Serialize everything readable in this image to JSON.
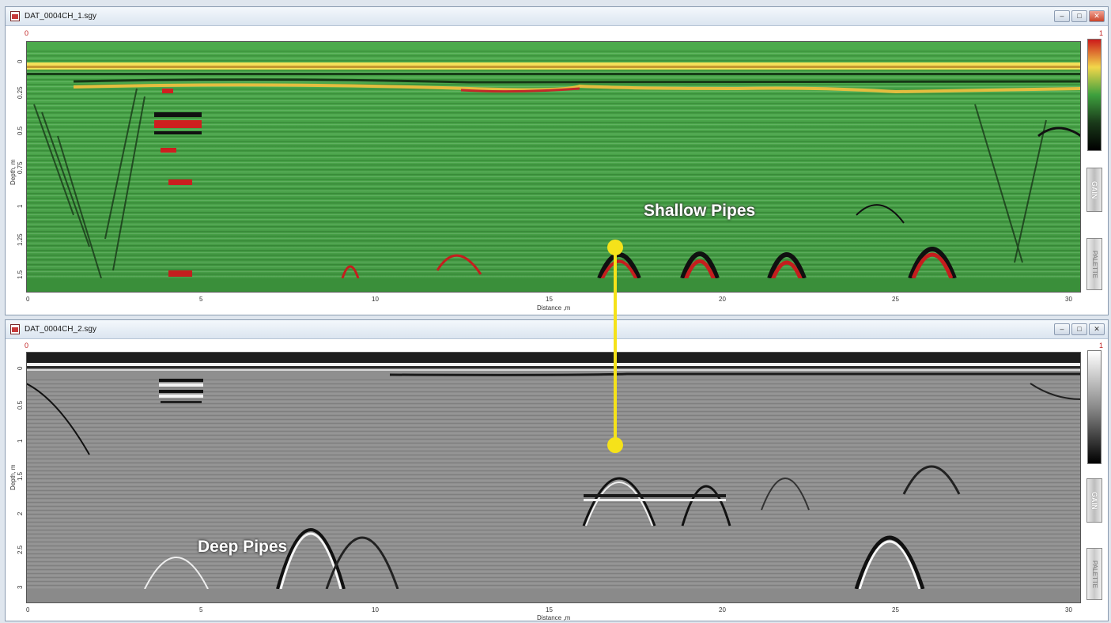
{
  "windows": [
    {
      "title": "DAT_0004CH_1.sgy",
      "scale_min": "0",
      "scale_max": "1",
      "y_axis_title": "Depth, m",
      "y_ticks": [
        "0",
        "0.25",
        "0.5",
        "0.75",
        "1",
        "1.25",
        "1.5"
      ],
      "x_axis_title": "Distance ,m",
      "x_ticks": [
        "0",
        "5",
        "10",
        "15",
        "20",
        "25",
        "30"
      ],
      "gain_label": "GAIN",
      "side_button_label": "PALETTE",
      "colorbar": [
        "#cc1a1a",
        "#f2d64a",
        "#3ea03e",
        "#1a3a1a",
        "#000000"
      ]
    },
    {
      "title": "DAT_0004CH_2.sgy",
      "scale_min": "0",
      "scale_max": "1",
      "y_axis_title": "Depth, m",
      "y_ticks": [
        "0",
        "0.5",
        "1",
        "1.5",
        "2",
        "2.5",
        "3"
      ],
      "x_axis_title": "Distance ,m",
      "x_ticks": [
        "0",
        "5",
        "10",
        "15",
        "20",
        "25",
        "30"
      ],
      "gain_label": "GAIN",
      "side_button_label": "PALETTE",
      "colorbar": [
        "#ffffff",
        "#8a8a8a",
        "#000000"
      ]
    }
  ],
  "annotations": {
    "shallow_label": "Shallow Pipes",
    "deep_label": "Deep Pipes",
    "marker_color": "#f5e21a"
  }
}
